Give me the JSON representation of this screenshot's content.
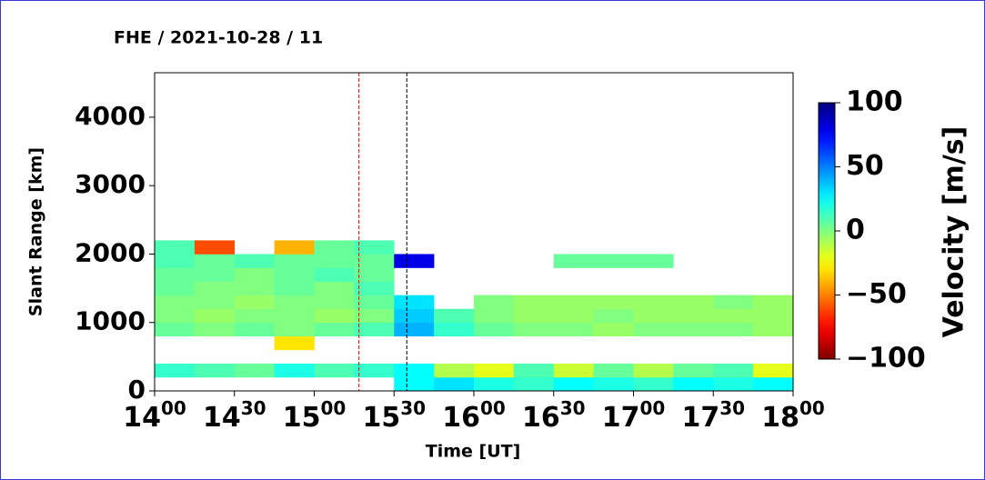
{
  "chart_data": {
    "type": "heatmap",
    "title": "FHE / 2021-10-28 / 11",
    "x_label": "Time [UT]",
    "y_label": "Slant Range [km]",
    "colorbar_label": "Velocity [m/s]",
    "colormap": "jet_r",
    "xlim": [
      14,
      18
    ],
    "xticks": [
      {
        "value": 14,
        "label": "14",
        "sup": "00"
      },
      {
        "value": 14.5,
        "label": "14",
        "sup": "30"
      },
      {
        "value": 15,
        "label": "15",
        "sup": "00"
      },
      {
        "value": 15.5,
        "label": "15",
        "sup": "30"
      },
      {
        "value": 16,
        "label": "16",
        "sup": "00"
      },
      {
        "value": 16.5,
        "label": "16",
        "sup": "30"
      },
      {
        "value": 17,
        "label": "17",
        "sup": "00"
      },
      {
        "value": 17.5,
        "label": "17",
        "sup": "30"
      },
      {
        "value": 18,
        "label": "18",
        "sup": "00"
      }
    ],
    "ylim": [
      0,
      4650
    ],
    "yticks": [
      0,
      1000,
      2000,
      3000,
      4000
    ],
    "clim": [
      -100,
      100
    ],
    "cticks": [
      {
        "value": 100,
        "label": "100"
      },
      {
        "value": 50,
        "label": "50"
      },
      {
        "value": 0,
        "label": "0"
      },
      {
        "value": -50,
        "label": "−50"
      },
      {
        "value": -100,
        "label": "−100"
      }
    ],
    "xbins": [
      14,
      14.25,
      14.5,
      14.75,
      15,
      15.25,
      15.5,
      15.75,
      16,
      16.25,
      16.5,
      16.75,
      17,
      17.25,
      17.5,
      17.75,
      18
    ],
    "ybins": [
      0,
      200,
      400,
      600,
      800,
      1000,
      1200,
      1400,
      1600,
      1800,
      2000,
      2200,
      2400
    ],
    "values": [
      [
        null,
        null,
        null,
        null,
        null,
        null,
        25,
        30,
        20,
        15,
        25,
        20,
        15,
        25,
        20,
        25
      ],
      [
        15,
        10,
        5,
        20,
        10,
        15,
        25,
        -10,
        -20,
        10,
        -15,
        5,
        -10,
        5,
        10,
        -20
      ],
      [
        null,
        null,
        null,
        null,
        null,
        null,
        null,
        null,
        null,
        null,
        null,
        null,
        null,
        null,
        null,
        null
      ],
      [
        null,
        null,
        null,
        -30,
        null,
        null,
        null,
        null,
        null,
        null,
        null,
        null,
        null,
        null,
        null,
        null
      ],
      [
        5,
        0,
        5,
        0,
        5,
        10,
        40,
        15,
        5,
        0,
        0,
        -5,
        0,
        0,
        0,
        -5
      ],
      [
        0,
        -5,
        0,
        0,
        -5,
        0,
        35,
        10,
        0,
        -5,
        -5,
        0,
        -5,
        -5,
        -5,
        -5
      ],
      [
        0,
        0,
        -5,
        0,
        0,
        5,
        30,
        null,
        0,
        -5,
        -5,
        -5,
        -5,
        -5,
        0,
        -5
      ],
      [
        5,
        0,
        0,
        5,
        0,
        10,
        null,
        null,
        null,
        null,
        null,
        null,
        null,
        null,
        null,
        null
      ],
      [
        5,
        5,
        0,
        5,
        10,
        5,
        null,
        null,
        null,
        null,
        null,
        null,
        null,
        null,
        null,
        null
      ],
      [
        10,
        5,
        10,
        5,
        5,
        5,
        80,
        null,
        null,
        null,
        5,
        5,
        5,
        null,
        null,
        null
      ],
      [
        10,
        -60,
        null,
        -40,
        5,
        10,
        null,
        null,
        null,
        null,
        null,
        null,
        null,
        null,
        null,
        null
      ],
      [
        null,
        null,
        null,
        null,
        null,
        null,
        null,
        null,
        null,
        null,
        null,
        null,
        null,
        null,
        null,
        null
      ]
    ],
    "markers": [
      {
        "x": 15.28,
        "color": "#ff0000"
      },
      {
        "x": 15.58,
        "color": "#000000"
      }
    ]
  }
}
